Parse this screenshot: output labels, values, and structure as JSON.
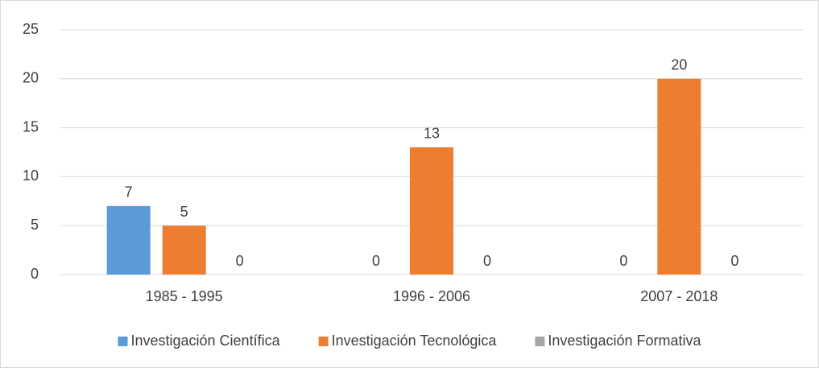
{
  "chart_data": {
    "type": "bar",
    "categories": [
      "1985 - 1995",
      "1996 - 2006",
      "2007 - 2018"
    ],
    "series": [
      {
        "name": "Investigación Científica",
        "color": "#5b9bd5",
        "values": [
          7,
          0,
          0
        ]
      },
      {
        "name": "Investigación Tecnológica",
        "color": "#ed7d31",
        "values": [
          5,
          13,
          20
        ]
      },
      {
        "name": "Investigación Formativa",
        "color": "#a5a5a5",
        "values": [
          0,
          0,
          0
        ]
      }
    ],
    "ylim": [
      0,
      25
    ],
    "yticks": [
      0,
      5,
      10,
      15,
      20,
      25
    ],
    "grid": true,
    "legend": "bottom"
  }
}
